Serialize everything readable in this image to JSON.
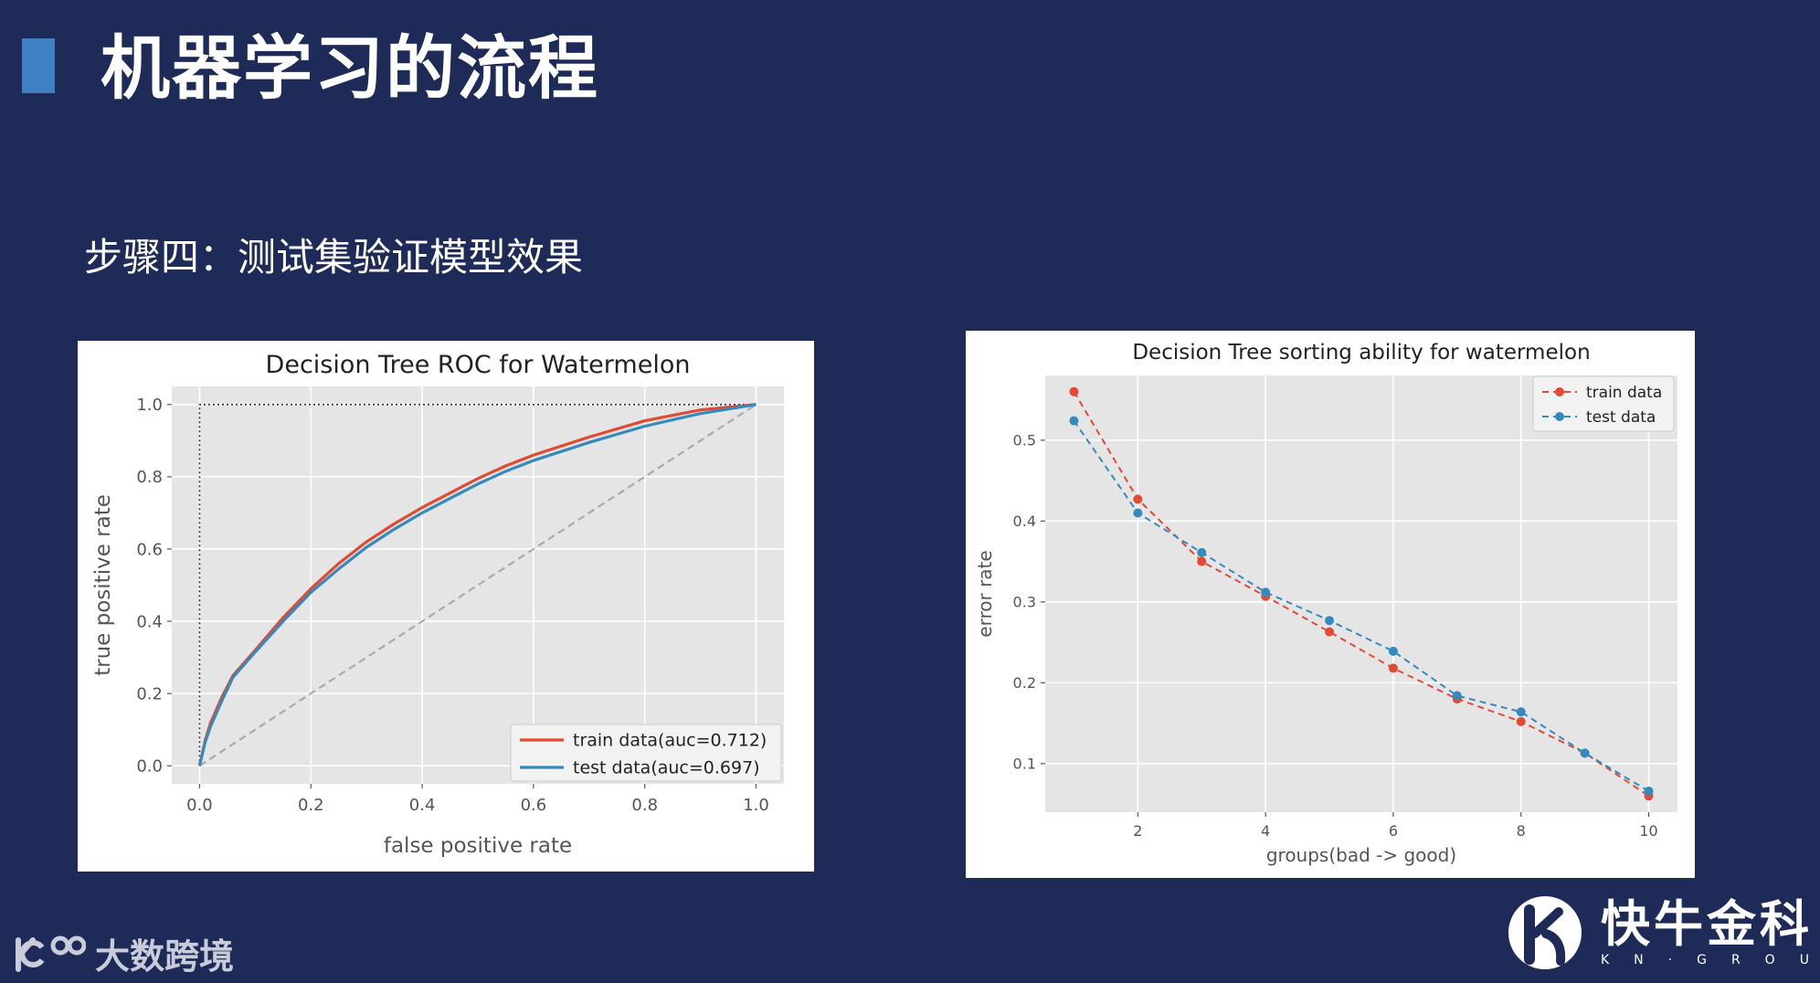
{
  "slide": {
    "title": "机器学习的流程",
    "subtitle": "步骤四：测试集验证模型效果"
  },
  "footer": {
    "left_brand": "大数跨境",
    "right_brand": "快牛金科",
    "right_sub": "KN·GROUP"
  },
  "colors": {
    "background": "#1e2a57",
    "accent": "#3f7fc4",
    "series_red": "#e24a33",
    "series_blue": "#348abd",
    "plot_bg": "#e5e5e5"
  },
  "chart_data": [
    {
      "type": "line",
      "title": "Decision Tree ROC for Watermelon",
      "xlabel": "false positive rate",
      "ylabel": "true positive rate",
      "xlim": [
        -0.05,
        1.05
      ],
      "ylim": [
        -0.05,
        1.05
      ],
      "xticks": [
        "0.0",
        "0.2",
        "0.4",
        "0.6",
        "0.8",
        "1.0"
      ],
      "yticks": [
        "0.0",
        "0.2",
        "0.4",
        "0.6",
        "0.8",
        "1.0"
      ],
      "grid": true,
      "legend_position": "lower-right",
      "series": [
        {
          "name": "train data(auc=0.712)",
          "color": "#e24a33",
          "x": [
            0,
            0.01,
            0.02,
            0.04,
            0.06,
            0.1,
            0.15,
            0.2,
            0.25,
            0.3,
            0.35,
            0.4,
            0.45,
            0.5,
            0.55,
            0.6,
            0.7,
            0.8,
            0.9,
            1.0
          ],
          "y": [
            0,
            0.07,
            0.12,
            0.19,
            0.25,
            0.32,
            0.41,
            0.49,
            0.56,
            0.62,
            0.67,
            0.715,
            0.755,
            0.795,
            0.83,
            0.86,
            0.91,
            0.955,
            0.985,
            1.0
          ]
        },
        {
          "name": "test data(auc=0.697)",
          "color": "#348abd",
          "x": [
            0,
            0.01,
            0.02,
            0.04,
            0.06,
            0.1,
            0.15,
            0.2,
            0.25,
            0.3,
            0.35,
            0.4,
            0.45,
            0.5,
            0.55,
            0.6,
            0.7,
            0.8,
            0.9,
            1.0
          ],
          "y": [
            0,
            0.065,
            0.11,
            0.18,
            0.245,
            0.315,
            0.4,
            0.48,
            0.545,
            0.605,
            0.655,
            0.7,
            0.74,
            0.78,
            0.815,
            0.845,
            0.895,
            0.94,
            0.975,
            1.0
          ]
        }
      ],
      "reference_lines": [
        {
          "style": "dashed",
          "x": [
            0,
            1
          ],
          "y": [
            0,
            1
          ]
        },
        {
          "style": "dotted",
          "x": [
            0,
            0,
            1
          ],
          "y": [
            0,
            1,
            1
          ]
        }
      ]
    },
    {
      "type": "line",
      "title": "Decision Tree sorting ability for watermelon",
      "xlabel": "groups(bad -> good)",
      "ylabel": "error rate",
      "xlim": [
        0.55,
        10.45
      ],
      "ylim": [
        0.04,
        0.58
      ],
      "xticks": [
        "2",
        "4",
        "6",
        "8",
        "10"
      ],
      "yticks": [
        "0.1",
        "0.2",
        "0.3",
        "0.4",
        "0.5"
      ],
      "grid": true,
      "legend_position": "upper-right",
      "series": [
        {
          "name": "train data",
          "color": "#e24a33",
          "x": [
            1,
            2,
            3,
            4,
            5,
            6,
            7,
            8,
            9,
            10
          ],
          "y": [
            0.56,
            0.427,
            0.35,
            0.307,
            0.263,
            0.218,
            0.18,
            0.152,
            0.113,
            0.06
          ]
        },
        {
          "name": "test data",
          "color": "#348abd",
          "x": [
            1,
            2,
            3,
            4,
            5,
            6,
            7,
            8,
            9,
            10
          ],
          "y": [
            0.524,
            0.41,
            0.361,
            0.312,
            0.277,
            0.239,
            0.184,
            0.164,
            0.113,
            0.066
          ]
        }
      ]
    }
  ]
}
